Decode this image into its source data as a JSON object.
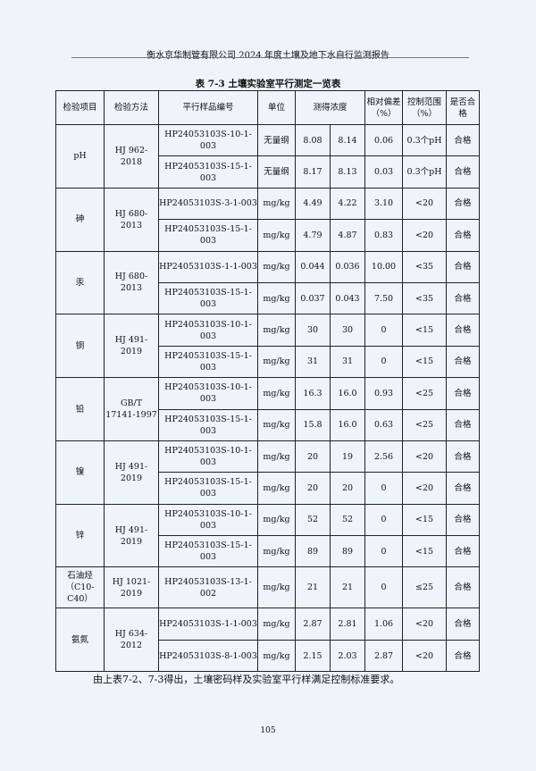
{
  "header": "衡水京华制管有限公司 2024 年度土壤及地下水自行监测报告",
  "caption": "表 7-3   土壤实验室平行测定一览表",
  "columns": [
    "检验项目",
    "检验方法",
    "平行样品编号",
    "单位",
    "测得浓度",
    "相对偏差（%）",
    "控制范围（%）",
    "是否合格"
  ],
  "groups": [
    {
      "item": "pH",
      "method": "HJ 962-2018",
      "rows": [
        [
          "HP24053103S-10-1-003",
          "无量纲",
          "8.08",
          "8.14",
          "0.06",
          "0.3个pH",
          "合格"
        ],
        [
          "HP24053103S-15-1-003",
          "无量纲",
          "8.17",
          "8.13",
          "0.03",
          "0.3个pH",
          "合格"
        ]
      ]
    },
    {
      "item": "砷",
      "method": "HJ 680-2013",
      "rows": [
        [
          "HP24053103S-3-1-003",
          "mg/kg",
          "4.49",
          "4.22",
          "3.10",
          "<20",
          "合格"
        ],
        [
          "HP24053103S-15-1-003",
          "mg/kg",
          "4.79",
          "4.87",
          "0.83",
          "<20",
          "合格"
        ]
      ]
    },
    {
      "item": "汞",
      "method": "HJ 680-2013",
      "rows": [
        [
          "HP24053103S-1-1-003",
          "mg/kg",
          "0.044",
          "0.036",
          "10.00",
          "<35",
          "合格"
        ],
        [
          "HP24053103S-15-1-003",
          "mg/kg",
          "0.037",
          "0.043",
          "7.50",
          "<35",
          "合格"
        ]
      ]
    },
    {
      "item": "铜",
      "method": "HJ 491-2019",
      "rows": [
        [
          "HP24053103S-10-1-003",
          "mg/kg",
          "30",
          "30",
          "0",
          "<15",
          "合格"
        ],
        [
          "HP24053103S-15-1-003",
          "mg/kg",
          "31",
          "31",
          "0",
          "<15",
          "合格"
        ]
      ]
    },
    {
      "item": "铅",
      "method": "GB/T 17141-1997",
      "rows": [
        [
          "HP24053103S-10-1-003",
          "mg/kg",
          "16.3",
          "16.0",
          "0.93",
          "<25",
          "合格"
        ],
        [
          "HP24053103S-15-1-003",
          "mg/kg",
          "15.8",
          "16.0",
          "0.63",
          "<25",
          "合格"
        ]
      ]
    },
    {
      "item": "镍",
      "method": "HJ 491-2019",
      "rows": [
        [
          "HP24053103S-10-1-003",
          "mg/kg",
          "20",
          "19",
          "2.56",
          "<20",
          "合格"
        ],
        [
          "HP24053103S-15-1-003",
          "mg/kg",
          "20",
          "20",
          "0",
          "<20",
          "合格"
        ]
      ]
    },
    {
      "item": "锌",
      "method": "HJ 491-2019",
      "rows": [
        [
          "HP24053103S-10-1-003",
          "mg/kg",
          "52",
          "52",
          "0",
          "<15",
          "合格"
        ],
        [
          "HP24053103S-15-1-003",
          "mg/kg",
          "89",
          "89",
          "0",
          "<15",
          "合格"
        ]
      ]
    },
    {
      "item": "石油烃（C10-C40）",
      "method": "HJ 1021-2019",
      "rows": [
        [
          "HP24053103S-13-1-002",
          "mg/kg",
          "21",
          "21",
          "0",
          "≤25",
          "合格"
        ]
      ]
    },
    {
      "item": "氨氮",
      "method": "HJ 634-2012",
      "rows": [
        [
          "HP24053103S-1-1-003",
          "mg/kg",
          "2.87",
          "2.81",
          "1.06",
          "<20",
          "合格"
        ],
        [
          "HP24053103S-8-1-003",
          "mg/kg",
          "2.15",
          "2.03",
          "2.87",
          "<20",
          "合格"
        ]
      ]
    }
  ],
  "note": "由上表7-2、7-3得出，土壤密码样及实验室平行样满足控制标准要求。",
  "page_number": "105"
}
